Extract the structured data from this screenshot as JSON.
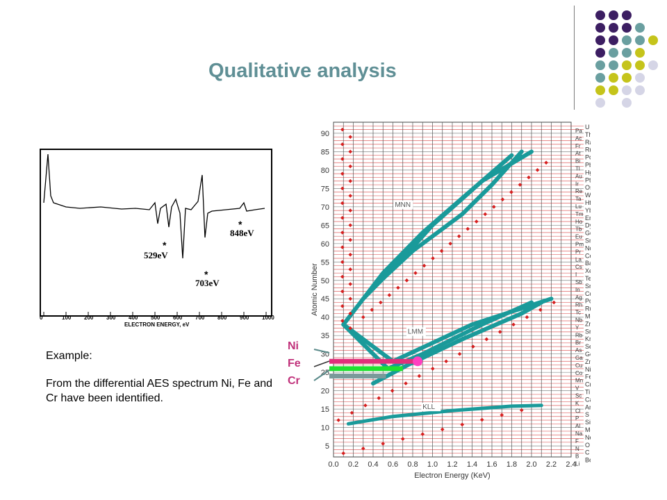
{
  "title": "Qualitative analysis",
  "example": {
    "label": "Example:",
    "text": "From the differential AES spectrum Ni, Fe and Cr have been identified."
  },
  "element_labels": [
    "Ni",
    "Fe",
    "Cr"
  ],
  "colors": {
    "title": "#5f8f95",
    "dot_purple": "#3c1e62",
    "dot_teal": "#6a9fa0",
    "dot_yellow": "#c5c41b",
    "dot_lavender": "#d5d5e6",
    "band_teal": "#1a9a9a",
    "marker_red": "#d62020",
    "grid_red": "#e06060",
    "ni_bar": "#e0307a",
    "fe_bar": "#20e030",
    "cr_bar": "#7a9a9a"
  },
  "spectrum": {
    "peaks": [
      "529eV",
      "703eV",
      "848eV"
    ],
    "x_ticks": [
      "0",
      "100",
      "200",
      "300",
      "400",
      "500",
      "600",
      "700",
      "800",
      "900",
      "1000"
    ],
    "x_label": "ELECTRON ENERGY, eV",
    "markers": [
      "*",
      "*",
      "*"
    ]
  },
  "chart_data": {
    "type": "scatter",
    "x_label": "Electron Energy (KeV)",
    "y_label": "Atomic Number",
    "x_ticks": [
      "0.0",
      "0.2",
      "0.4",
      "0.6",
      "0.8",
      "1.0",
      "1.2",
      "1.4",
      "1.6",
      "1.8",
      "2.0",
      "2.2",
      "2.4"
    ],
    "y_ticks": [
      "5",
      "10",
      "15",
      "20",
      "25",
      "30",
      "35",
      "40",
      "45",
      "50",
      "55",
      "60",
      "65",
      "70",
      "75",
      "80",
      "85",
      "90"
    ],
    "xlim": [
      0.0,
      2.4
    ],
    "ylim": [
      2,
      93
    ],
    "series_labels": [
      "MNN",
      "LMM",
      "KLL"
    ],
    "elements_right": [
      "U",
      "Th",
      "Ra",
      "Rn",
      "Po",
      "Pb",
      "Hg",
      "Pt",
      "Os",
      "W",
      "Hf",
      "Yb",
      "Er",
      "Dy",
      "Gd",
      "Sm",
      "Nd",
      "Ce",
      "Ba",
      "Xe",
      "Te",
      "Sn",
      "Cd",
      "Pd",
      "Ru",
      "Mo",
      "Zr",
      "Sr",
      "Kr",
      "Se",
      "Ge",
      "Zn",
      "Ni",
      "Fe",
      "Cr",
      "Ti",
      "Ca",
      "Ar",
      "S",
      "Si",
      "Mg",
      "Ne",
      "O",
      "C",
      "Be"
    ],
    "elements_left": [
      "Pa",
      "Ac",
      "Fr",
      "At",
      "Bi",
      "Tl",
      "Au",
      "Ir",
      "Re",
      "Ta",
      "Lu",
      "Tm",
      "Ho",
      "Tb",
      "Eu",
      "Pm",
      "Pr",
      "La",
      "Cs",
      "I",
      "Sb",
      "In",
      "Ag",
      "Rh",
      "Tc",
      "Nb",
      "Y",
      "Rb",
      "Br",
      "As",
      "Ga",
      "Cu",
      "Co",
      "Mn",
      "V",
      "Sc",
      "K",
      "Cl",
      "P",
      "Al",
      "Na",
      "F",
      "N",
      "B",
      "Li"
    ],
    "highlights": [
      {
        "name": "Ni",
        "z": 28,
        "energy_keV": 0.85
      },
      {
        "name": "Fe",
        "z": 26,
        "energy_keV": 0.7
      },
      {
        "name": "Cr",
        "z": 24,
        "energy_keV": 0.53
      }
    ]
  }
}
